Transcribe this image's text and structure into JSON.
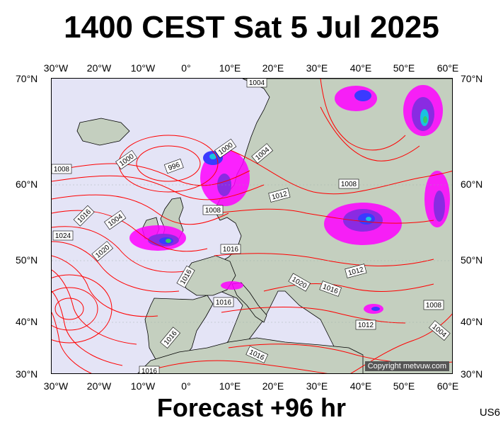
{
  "title": "1400 CEST Sat 5 Jul 2025",
  "subtitle": "Forecast +96 hr",
  "code": "US6",
  "copyright": "Copyright metvuw.com",
  "lon_labels": [
    "30°W",
    "20°W",
    "10°W",
    "0°",
    "10°E",
    "20°E",
    "30°E",
    "40°E",
    "50°E",
    "60°E"
  ],
  "lat_labels": [
    "70°N",
    "60°N",
    "50°N",
    "40°N",
    "30°N"
  ],
  "isobar_labels": [
    "1004",
    "1000",
    "996",
    "1004",
    "1012",
    "1008",
    "1016",
    "1004",
    "1024",
    "1020",
    "1000",
    "1008",
    "1016",
    "1012",
    "1016",
    "1016",
    "1020",
    "1016",
    "1008",
    "1012",
    "1004",
    "1016",
    "1016",
    "1016",
    "1008"
  ],
  "colors": {
    "sea": "#e4e4f6",
    "land": "#c4cfbf",
    "isobar": "#ff0000",
    "precip_magenta": "#ff00ff",
    "precip_purple": "#8a2be2",
    "precip_blue": "#3a3aff",
    "precip_cyan": "#19c2e0",
    "precip_green": "#33cc66"
  }
}
